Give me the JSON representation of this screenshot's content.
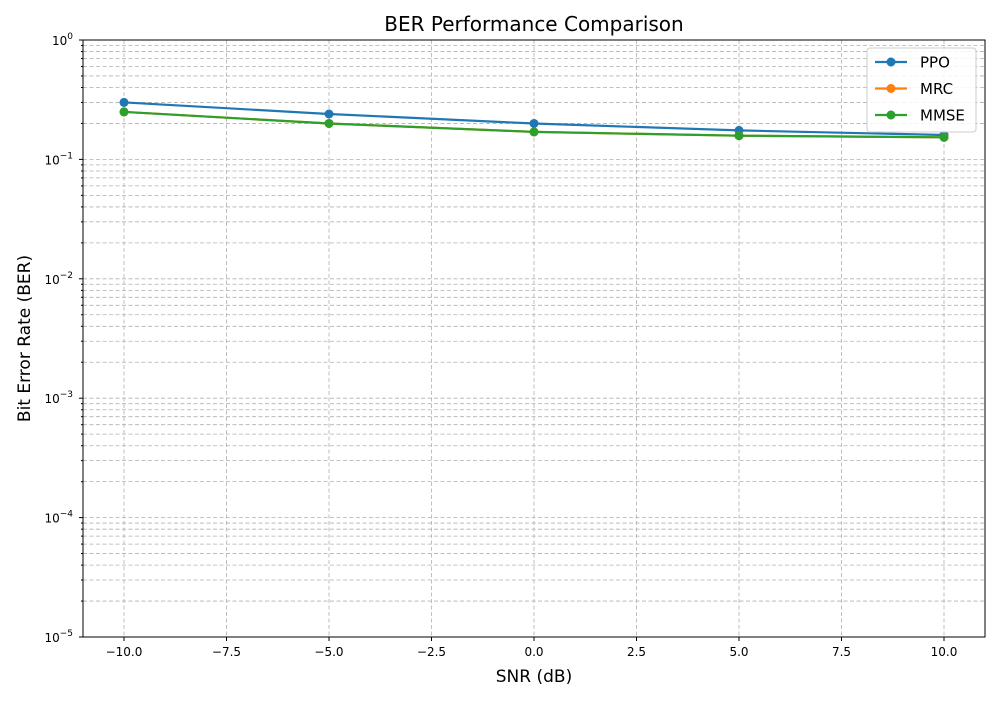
{
  "chart_data": {
    "type": "line",
    "title": "BER Performance Comparison",
    "xlabel": "SNR (dB)",
    "ylabel": "Bit Error Rate (BER)",
    "x": [
      -10,
      -5,
      0,
      5,
      10
    ],
    "xlim": [
      -11,
      11
    ],
    "ylim": [
      1e-05,
      1
    ],
    "yscale": "log",
    "grid": true,
    "grid_style": "dashed, major and minor",
    "legend_position": "upper right",
    "x_ticks": [
      -10,
      -7.5,
      -5,
      -2.5,
      0,
      2.5,
      5,
      7.5,
      10
    ],
    "x_tick_labels": [
      "−10.0",
      "−7.5",
      "−5.0",
      "−2.5",
      "0.0",
      "2.5",
      "5.0",
      "7.5",
      "10.0"
    ],
    "y_ticks": [
      1e-05,
      0.0001,
      0.001,
      0.01,
      0.1,
      1
    ],
    "y_tick_labels": [
      {
        "base": "10",
        "exp": "−5"
      },
      {
        "base": "10",
        "exp": "−4"
      },
      {
        "base": "10",
        "exp": "−3"
      },
      {
        "base": "10",
        "exp": "−2"
      },
      {
        "base": "10",
        "exp": "−1"
      },
      {
        "base": "10",
        "exp": "0"
      }
    ],
    "series": [
      {
        "name": "PPO",
        "color": "#1f77b4",
        "marker": "circle",
        "values": [
          0.3,
          0.24,
          0.2,
          0.175,
          0.16
        ]
      },
      {
        "name": "MRC",
        "color": "#ff7f0e",
        "marker": "circle",
        "values": [
          0.25,
          0.2,
          0.17,
          0.158,
          0.153
        ]
      },
      {
        "name": "MMSE",
        "color": "#2ca02c",
        "marker": "circle",
        "values": [
          0.25,
          0.2,
          0.17,
          0.158,
          0.153
        ]
      }
    ]
  }
}
